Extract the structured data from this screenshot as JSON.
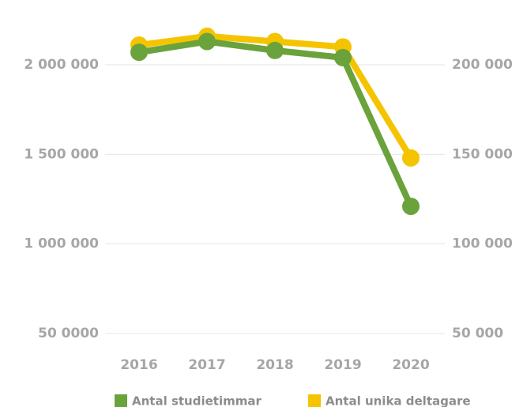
{
  "chart_data": {
    "type": "line",
    "categories": [
      "2016",
      "2017",
      "2018",
      "2019",
      "2020"
    ],
    "series": [
      {
        "name": "Antal studietimmar",
        "color": "#6aa23b",
        "values": [
          2070000,
          2130000,
          2080000,
          2040000,
          1210000
        ]
      },
      {
        "name": "Antal unika deltagare",
        "color": "#f5c400",
        "axis": "y2",
        "values": [
          211000,
          216000,
          213000,
          210000,
          148000
        ]
      }
    ],
    "ylim": [
      500000,
      2300000
    ],
    "yticks": [
      {
        "value": 500000,
        "label": "50 0000"
      },
      {
        "value": 1000000,
        "label": "1 000 000"
      },
      {
        "value": 1500000,
        "label": "1 500 000"
      },
      {
        "value": 2000000,
        "label": "2 000 000"
      }
    ],
    "y2lim": [
      50000,
      230000
    ],
    "y2ticks": [
      {
        "value": 50000,
        "label": "50 000"
      },
      {
        "value": 100000,
        "label": "100 000"
      },
      {
        "value": 150000,
        "label": "150 000"
      },
      {
        "value": 200000,
        "label": "200 000"
      }
    ],
    "grid": true,
    "legend": "bottom"
  }
}
